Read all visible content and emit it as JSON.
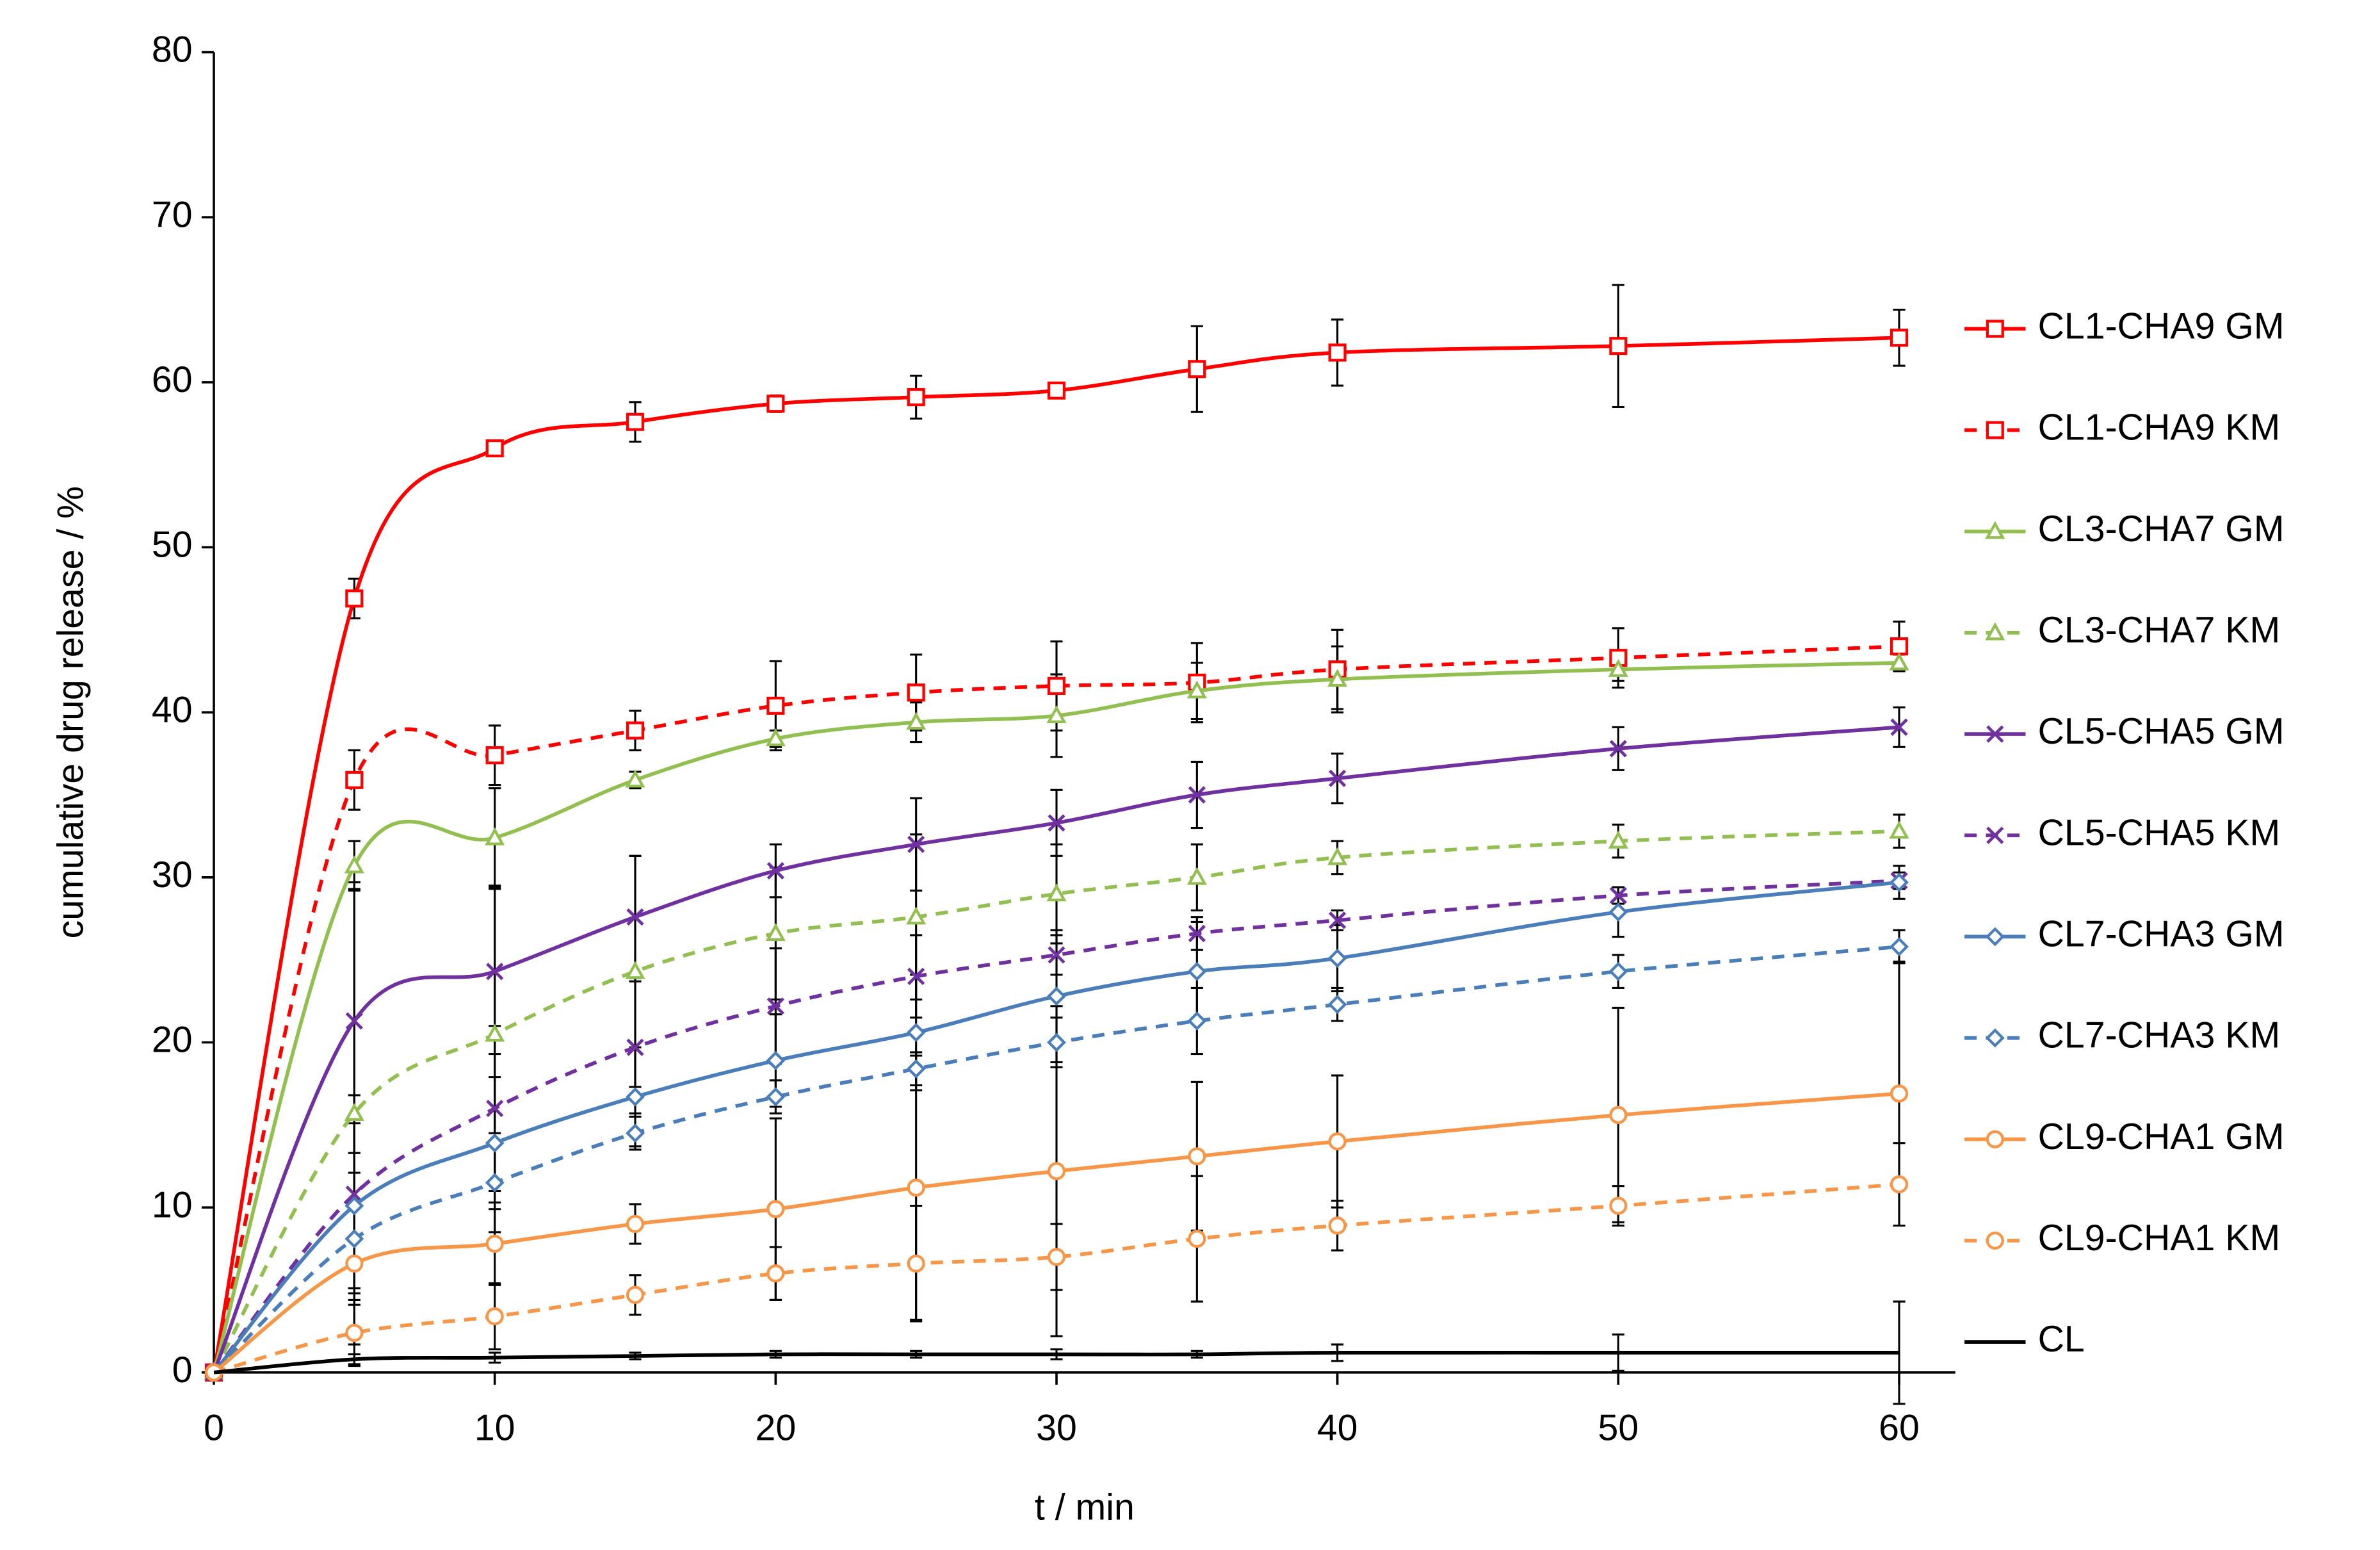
{
  "chart_data": {
    "type": "line",
    "y_label": "cumulative drug release / %",
    "x_label": "t / min",
    "x": [
      0,
      5,
      10,
      15,
      20,
      25,
      30,
      35,
      40,
      50,
      60
    ],
    "xlim": [
      0,
      62
    ],
    "xticks": [
      0,
      10,
      20,
      30,
      40,
      50,
      60
    ],
    "ylim": [
      0,
      80
    ],
    "yticks": [
      0,
      10,
      20,
      30,
      40,
      50,
      60,
      70,
      80
    ],
    "smooth": true,
    "legend": "right",
    "series": [
      {
        "name": "CL1-CHA9 GM",
        "color": "#ff0000",
        "marker": "square",
        "dashed": false,
        "values": [
          0,
          46.9,
          56.0,
          57.6,
          58.7,
          59.1,
          59.5,
          60.8,
          61.8,
          62.2,
          62.7
        ],
        "errors": [
          0,
          1.2,
          0.3,
          1.2,
          0.5,
          1.3,
          0.3,
          2.6,
          2.0,
          3.7,
          1.7
        ]
      },
      {
        "name": "CL1-CHA9 KM",
        "color": "#ff0000",
        "marker": "square",
        "dashed": true,
        "values": [
          0,
          35.9,
          37.4,
          38.9,
          40.4,
          41.2,
          41.6,
          41.8,
          42.6,
          43.3,
          44.0
        ],
        "errors": [
          0,
          1.8,
          1.8,
          1.2,
          2.7,
          2.3,
          2.7,
          2.4,
          2.4,
          1.8,
          1.5
        ]
      },
      {
        "name": "CL3-CHA7 GM",
        "color": "#92c050",
        "marker": "triangle",
        "dashed": false,
        "values": [
          0,
          30.7,
          32.4,
          35.9,
          38.4,
          39.4,
          39.8,
          41.3,
          42.0,
          42.6,
          43.0
        ],
        "errors": [
          0,
          1.5,
          3.0,
          0.5,
          0.5,
          1.2,
          2.5,
          1.7,
          2.0,
          0.7,
          0.5
        ]
      },
      {
        "name": "CL3-CHA7 KM",
        "color": "#92c050",
        "marker": "triangle",
        "dashed": true,
        "values": [
          0,
          15.7,
          20.5,
          24.3,
          26.6,
          27.6,
          29.0,
          30.0,
          31.2,
          32.2,
          32.8
        ],
        "errors": [
          0,
          14.0,
          9.0,
          7.0,
          4.0,
          5.0,
          3.0,
          2.0,
          1.0,
          1.0,
          1.0
        ]
      },
      {
        "name": "CL5-CHA5 GM",
        "color": "#7030a0",
        "marker": "cross",
        "dashed": false,
        "values": [
          0,
          21.3,
          24.3,
          27.6,
          30.4,
          32.0,
          33.3,
          35.0,
          36.0,
          37.8,
          39.1
        ],
        "errors": [
          0,
          8.0,
          5.0,
          3.7,
          1.6,
          2.8,
          2.0,
          2.0,
          1.5,
          1.3,
          1.2
        ]
      },
      {
        "name": "CL5-CHA5 KM",
        "color": "#7030a0",
        "marker": "cross",
        "dashed": true,
        "values": [
          0,
          10.8,
          16.0,
          19.7,
          22.2,
          24.0,
          25.3,
          26.6,
          27.4,
          28.9,
          29.8
        ],
        "errors": [
          0,
          6.0,
          5.0,
          4.0,
          3.5,
          2.5,
          1.2,
          1.0,
          0.6,
          0.5,
          0.5
        ]
      },
      {
        "name": "CL7-CHA3 GM",
        "color": "#4a7ebb",
        "marker": "diamond",
        "dashed": false,
        "values": [
          0,
          10.1,
          13.9,
          16.7,
          18.9,
          20.6,
          22.8,
          24.3,
          25.1,
          27.9,
          29.7
        ],
        "errors": [
          0,
          5.0,
          4.0,
          3.0,
          2.8,
          3.5,
          4.0,
          3.0,
          2.0,
          1.5,
          1.0
        ]
      },
      {
        "name": "CL7-CHA3 KM",
        "color": "#4a7ebb",
        "marker": "diamond",
        "dashed": true,
        "values": [
          0,
          8.1,
          11.5,
          14.5,
          16.7,
          18.4,
          20.0,
          21.3,
          22.3,
          24.3,
          25.8
        ],
        "errors": [
          0,
          4.0,
          3.0,
          1.0,
          1.0,
          1.0,
          1.5,
          2.0,
          1.0,
          1.0,
          1.0
        ]
      },
      {
        "name": "CL9-CHA1 GM",
        "color": "#f79646",
        "marker": "circle",
        "dashed": false,
        "values": [
          0,
          6.6,
          7.8,
          9.0,
          9.9,
          11.2,
          12.2,
          13.1,
          14.0,
          15.6,
          16.9
        ],
        "errors": [
          0,
          1.5,
          2.5,
          1.2,
          5.5,
          8.0,
          10.0,
          4.5,
          4.0,
          6.5,
          8.0
        ]
      },
      {
        "name": "CL9-CHA1 KM",
        "color": "#f79646",
        "marker": "circle",
        "dashed": true,
        "values": [
          0,
          2.4,
          3.4,
          4.7,
          6.0,
          6.6,
          7.0,
          8.1,
          8.9,
          10.1,
          11.4
        ],
        "errors": [
          0,
          2.0,
          2.0,
          1.2,
          1.6,
          3.5,
          2.0,
          3.8,
          1.5,
          1.2,
          2.5
        ]
      },
      {
        "name": "CL",
        "color": "#000000",
        "marker": "none",
        "dashed": false,
        "values": [
          0,
          0.8,
          0.9,
          1.0,
          1.1,
          1.1,
          1.1,
          1.1,
          1.2,
          1.2,
          1.2
        ],
        "errors": [
          0,
          0.3,
          0.3,
          0.2,
          0.2,
          0.2,
          0.3,
          0.2,
          0.5,
          1.1,
          3.1
        ]
      }
    ]
  }
}
